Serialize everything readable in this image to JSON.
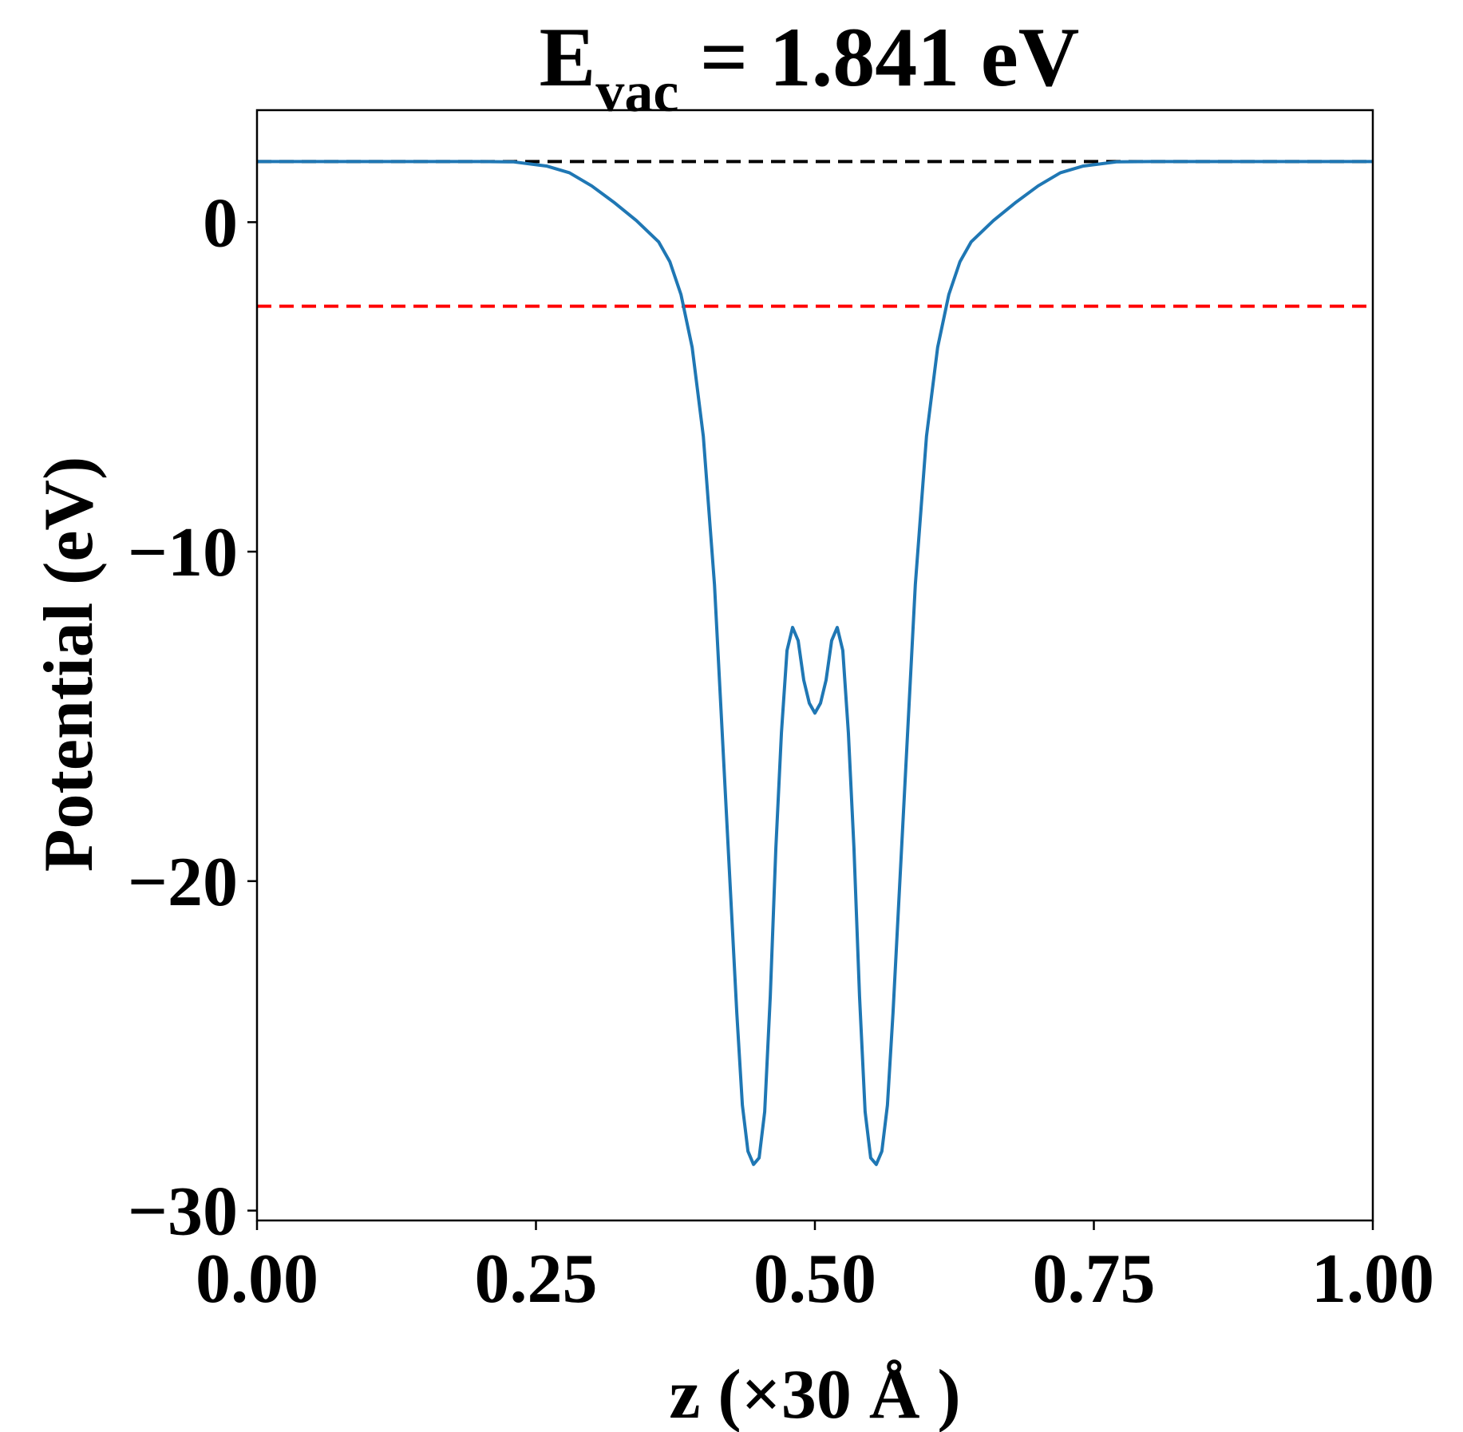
{
  "chart_data": {
    "type": "line",
    "title": {
      "prefix": "E",
      "subscript": "vac",
      "suffix": " = 1.841 eV"
    },
    "xlabel": "z (×30 Å )",
    "ylabel": "Potential (eV)",
    "xlim": [
      0.0,
      1.0
    ],
    "ylim": [
      -30.3,
      3.4
    ],
    "x_ticks": [
      0.0,
      0.25,
      0.5,
      0.75,
      1.0
    ],
    "x_tick_labels": [
      "0.00",
      "0.25",
      "0.50",
      "0.75",
      "1.00"
    ],
    "y_ticks": [
      0,
      -10,
      -20,
      -30
    ],
    "y_tick_labels": [
      "0",
      "−10",
      "−20",
      "−30"
    ],
    "grid": false,
    "series": [
      {
        "color": "#1f77b4",
        "style": "solid",
        "x": [
          0.0,
          0.05,
          0.1,
          0.15,
          0.2,
          0.23,
          0.26,
          0.28,
          0.3,
          0.32,
          0.34,
          0.36,
          0.37,
          0.38,
          0.39,
          0.4,
          0.41,
          0.42,
          0.43,
          0.435,
          0.44,
          0.445,
          0.45,
          0.455,
          0.46,
          0.465,
          0.47,
          0.475,
          0.48,
          0.485,
          0.49,
          0.495,
          0.5,
          0.505,
          0.51,
          0.515,
          0.52,
          0.525,
          0.53,
          0.535,
          0.54,
          0.545,
          0.55,
          0.555,
          0.56,
          0.565,
          0.57,
          0.58,
          0.59,
          0.6,
          0.61,
          0.62,
          0.63,
          0.64,
          0.66,
          0.68,
          0.7,
          0.72,
          0.74,
          0.77,
          0.8,
          0.85,
          0.9,
          0.95,
          1.0
        ],
        "y": [
          1.84,
          1.84,
          1.84,
          1.84,
          1.84,
          1.83,
          1.7,
          1.5,
          1.1,
          0.6,
          0.05,
          -0.6,
          -1.2,
          -2.2,
          -3.8,
          -6.5,
          -11.0,
          -17.5,
          -24.0,
          -26.8,
          -28.2,
          -28.6,
          -28.4,
          -27.0,
          -23.5,
          -19.0,
          -15.5,
          -13.0,
          -12.3,
          -12.7,
          -13.9,
          -14.6,
          -14.9,
          -14.6,
          -13.9,
          -12.7,
          -12.3,
          -13.0,
          -15.5,
          -19.0,
          -23.5,
          -27.0,
          -28.4,
          -28.6,
          -28.2,
          -26.8,
          -24.0,
          -17.5,
          -11.0,
          -6.5,
          -3.8,
          -2.2,
          -1.2,
          -0.6,
          0.05,
          0.6,
          1.1,
          1.5,
          1.7,
          1.83,
          1.84,
          1.84,
          1.84,
          1.84,
          1.84
        ]
      }
    ],
    "reference_lines": [
      {
        "y": 1.841,
        "color": "#000000",
        "style": "dashed"
      },
      {
        "y": -2.55,
        "color": "#ff0000",
        "style": "dashed"
      }
    ]
  }
}
